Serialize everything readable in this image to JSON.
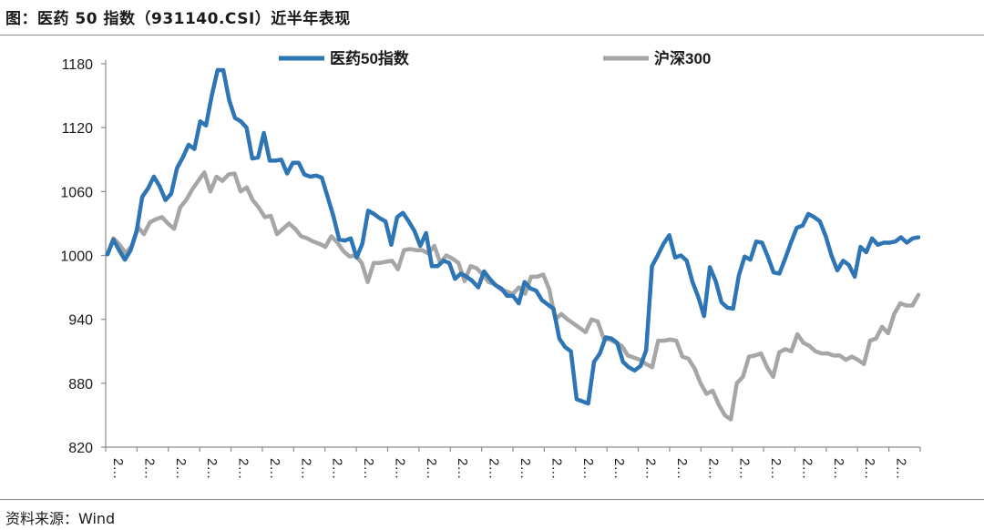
{
  "title": "图：医药 50 指数（931140.CSI）近半年表现",
  "source": "资料来源：Wind",
  "chart_data": {
    "type": "line",
    "ylim": [
      820,
      1180
    ],
    "yticks": [
      820,
      880,
      940,
      1000,
      1060,
      1120,
      1180
    ],
    "xtick_label": "2…",
    "xtick_count": 26,
    "grid": false,
    "legend_placement": "top",
    "series": [
      {
        "name": "医药50指数",
        "color": "#2e75b6",
        "values": [
          1001,
          1015,
          1005,
          996,
          1005,
          1022,
          1055,
          1063,
          1074,
          1065,
          1052,
          1058,
          1082,
          1092,
          1104,
          1100,
          1126,
          1122,
          1150,
          1174,
          1174,
          1146,
          1129,
          1126,
          1120,
          1091,
          1092,
          1115,
          1089,
          1089,
          1090,
          1077,
          1087,
          1087,
          1076,
          1074,
          1075,
          1073,
          1055,
          1037,
          1015,
          1014,
          1016,
          998,
          1011,
          1042,
          1039,
          1035,
          1032,
          1010,
          1036,
          1040,
          1032,
          1023,
          1009,
          1021,
          990,
          990,
          995,
          993,
          978,
          983,
          980,
          976,
          970,
          985,
          978,
          972,
          969,
          962,
          962,
          955,
          975,
          969,
          967,
          958,
          954,
          950,
          922,
          914,
          910,
          865,
          863,
          861,
          900,
          908,
          923,
          922,
          918,
          900,
          895,
          892,
          896,
          911,
          990,
          1000,
          1011,
          1019,
          998,
          1000,
          995,
          975,
          961,
          943,
          989,
          976,
          956,
          951,
          950,
          981,
          999,
          996,
          1013,
          1012,
          999,
          984,
          983,
          997,
          1012,
          1026,
          1028,
          1039,
          1036,
          1032,
          1018,
          1000,
          986,
          995,
          991,
          980,
          1008,
          1003,
          1016,
          1010,
          1012,
          1012,
          1013,
          1017,
          1012,
          1016,
          1017
        ]
      },
      {
        "name": "沪深300",
        "color": "#a6a6a6",
        "values": [
          1001,
          1016,
          1010,
          1002,
          1009,
          1027,
          1020,
          1031,
          1034,
          1036,
          1030,
          1025,
          1045,
          1052,
          1062,
          1070,
          1078,
          1060,
          1074,
          1070,
          1076,
          1077,
          1060,
          1064,
          1052,
          1045,
          1036,
          1037,
          1020,
          1025,
          1030,
          1025,
          1018,
          1016,
          1013,
          1011,
          1008,
          1018,
          1012,
          1004,
          999,
          1000,
          993,
          975,
          993,
          993,
          994,
          995,
          987,
          1005,
          1006,
          1005,
          1005,
          1002,
          1009,
          993,
          1000,
          997,
          993,
          976,
          990,
          988,
          982,
          975,
          973,
          968,
          966,
          964,
          970,
          964,
          980,
          980,
          982,
          968,
          940,
          945,
          940,
          936,
          932,
          928,
          940,
          938,
          922,
          921,
          918,
          915,
          906,
          904,
          902,
          898,
          895,
          920,
          920,
          921,
          920,
          905,
          903,
          894,
          880,
          870,
          873,
          860,
          850,
          846,
          880,
          886,
          905,
          906,
          908,
          895,
          886,
          909,
          912,
          910,
          926,
          918,
          915,
          910,
          908,
          908,
          906,
          906,
          902,
          905,
          902,
          898,
          920,
          922,
          933,
          927,
          945,
          955,
          953,
          953,
          963
        ]
      }
    ]
  }
}
